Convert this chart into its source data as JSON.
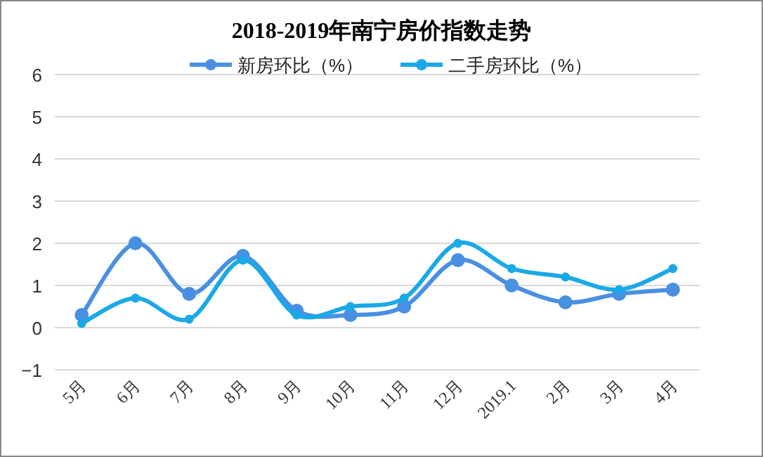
{
  "chart_data": {
    "type": "line",
    "title": "2018-2019年南宁房价指数走势",
    "categories": [
      "5月",
      "6月",
      "7月",
      "8月",
      "9月",
      "10月",
      "11月",
      "12月",
      "2019.1",
      "2月",
      "3月",
      "4月"
    ],
    "series": [
      {
        "name": "新房环比（%）",
        "color": "#4a90e2",
        "values": [
          0.3,
          2.0,
          0.8,
          1.7,
          0.4,
          0.3,
          0.5,
          1.6,
          1.0,
          0.6,
          0.8,
          0.9
        ]
      },
      {
        "name": "二手房环比（%）",
        "color": "#1ba9e6",
        "values": [
          0.1,
          0.7,
          0.2,
          1.6,
          0.3,
          0.5,
          0.7,
          2.0,
          1.4,
          1.2,
          0.9,
          1.4
        ]
      }
    ],
    "ylim": [
      -1,
      6
    ],
    "yticks": [
      -1,
      0,
      1,
      2,
      3,
      4,
      5,
      6
    ],
    "grid": "y",
    "legend": "top",
    "marker": "circle",
    "line_style": "solid"
  }
}
